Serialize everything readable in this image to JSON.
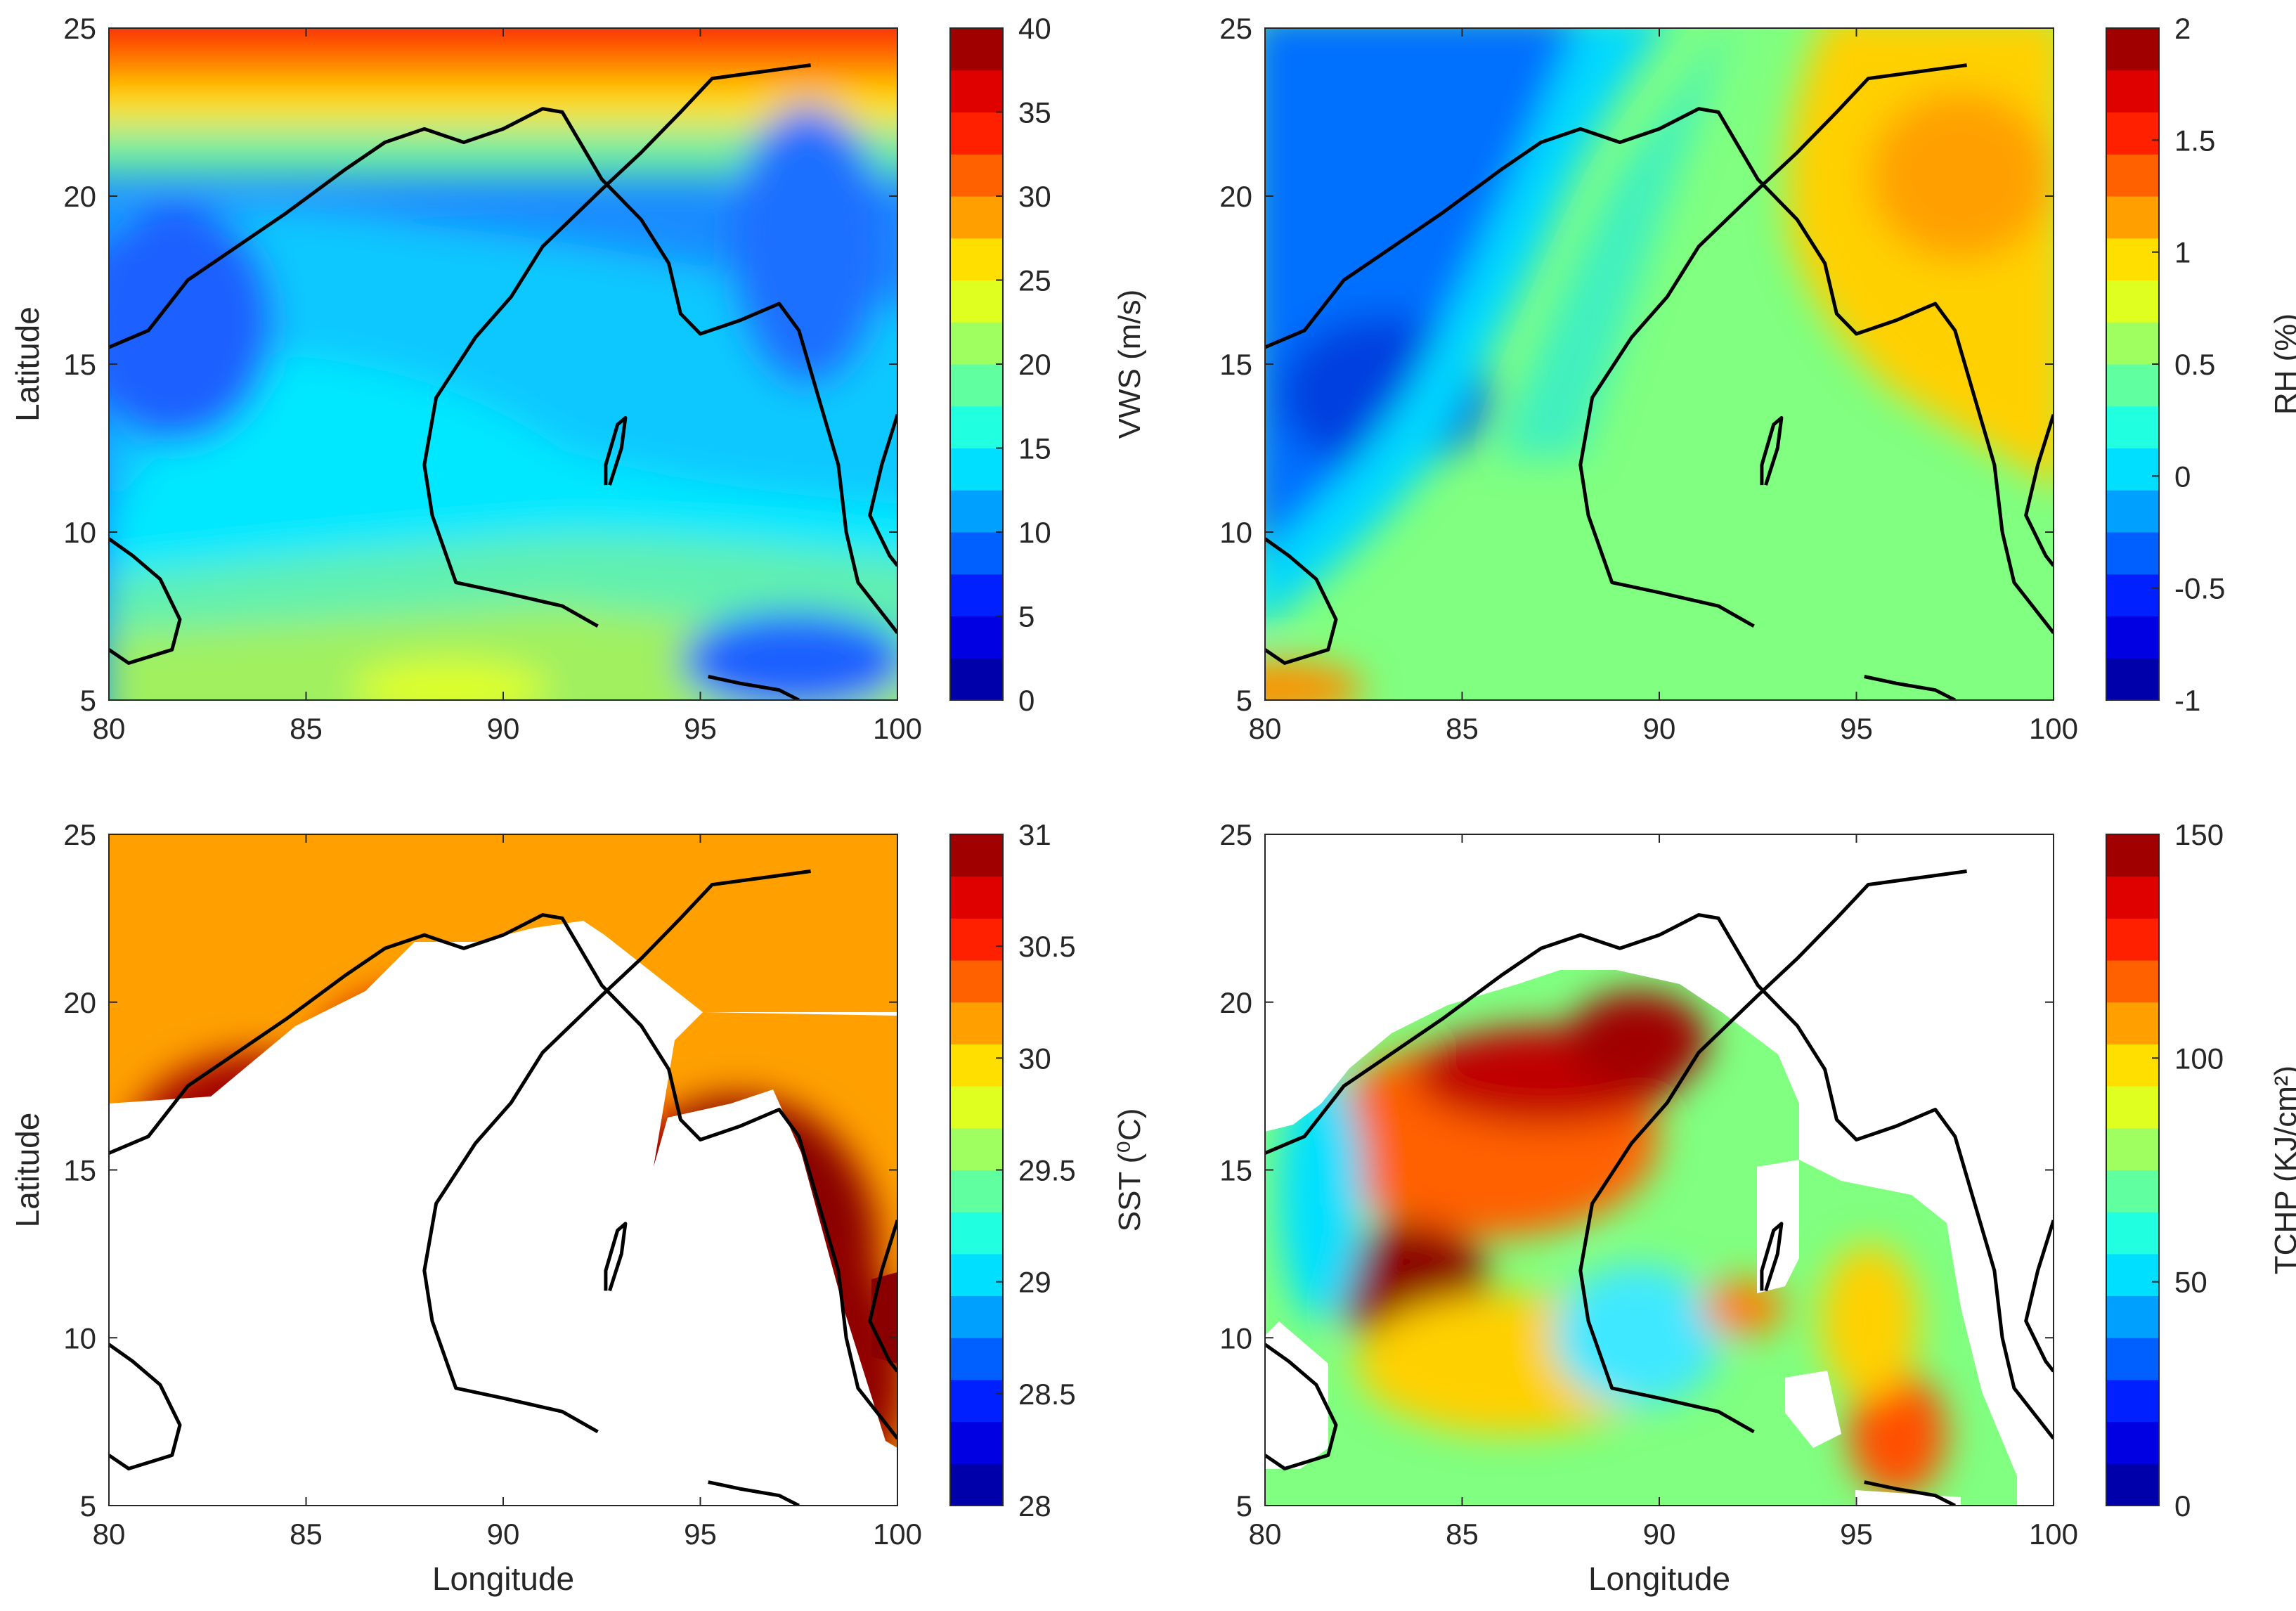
{
  "chart_data": [
    {
      "type": "heatmap",
      "title": "",
      "xlabel": "",
      "ylabel": "Latitude",
      "xlim": [
        80,
        100
      ],
      "ylim": [
        5,
        25
      ],
      "xticks": [
        "80",
        "85",
        "90",
        "95",
        "100"
      ],
      "yticks": [
        "5",
        "10",
        "15",
        "20",
        "25"
      ],
      "colorbar": {
        "label": "VWS (m/s)",
        "min": 0,
        "max": 40,
        "ticks": [
          "0",
          "5",
          "10",
          "15",
          "20",
          "25",
          "30",
          "35",
          "40"
        ]
      },
      "masked_land": false
    },
    {
      "type": "heatmap",
      "title": "",
      "xlabel": "",
      "ylabel": "",
      "xlim": [
        80,
        100
      ],
      "ylim": [
        5,
        25
      ],
      "xticks": [
        "80",
        "85",
        "90",
        "95",
        "100"
      ],
      "yticks": [
        "5",
        "10",
        "15",
        "20",
        "25"
      ],
      "colorbar": {
        "label": "RH (%)",
        "min": -1,
        "max": 2,
        "ticks": [
          "-1",
          "-0.5",
          "0",
          "0.5",
          "1",
          "1.5",
          "2"
        ]
      },
      "masked_land": false
    },
    {
      "type": "heatmap",
      "title": "",
      "xlabel": "Longitude",
      "ylabel": "Latitude",
      "xlim": [
        80,
        100
      ],
      "ylim": [
        5,
        25
      ],
      "xticks": [
        "80",
        "85",
        "90",
        "95",
        "100"
      ],
      "yticks": [
        "5",
        "10",
        "15",
        "20",
        "25"
      ],
      "colorbar": {
        "label": "SST (⁰C)",
        "min": 28,
        "max": 31,
        "ticks": [
          "28",
          "28.5",
          "29",
          "29.5",
          "30",
          "30.5",
          "31"
        ]
      },
      "masked_land": true
    },
    {
      "type": "heatmap",
      "title": "",
      "xlabel": "Longitude",
      "ylabel": "",
      "xlim": [
        80,
        100
      ],
      "ylim": [
        5,
        25
      ],
      "xticks": [
        "80",
        "85",
        "90",
        "95",
        "100"
      ],
      "yticks": [
        "5",
        "10",
        "15",
        "20",
        "25"
      ],
      "colorbar": {
        "label": "TCHP (KJ/cm²)",
        "min": 0,
        "max": 150,
        "ticks": [
          "0",
          "50",
          "100",
          "150"
        ]
      },
      "masked_land": true
    }
  ],
  "overlays": {
    "coastline": [
      [
        80,
        15.5
      ],
      [
        81,
        16
      ],
      [
        82,
        17.5
      ],
      [
        83,
        18.3
      ],
      [
        84.5,
        19.5
      ],
      [
        86,
        20.8
      ],
      [
        87,
        21.6
      ],
      [
        88,
        22
      ],
      [
        89,
        21.6
      ],
      [
        90,
        22
      ],
      [
        91,
        22.6
      ],
      [
        91.5,
        22.5
      ],
      [
        92,
        21.5
      ],
      [
        92.5,
        20.5
      ],
      [
        93.5,
        19.3
      ],
      [
        94.2,
        18
      ],
      [
        94.5,
        16.5
      ],
      [
        95,
        15.9
      ],
      [
        96,
        16.3
      ],
      [
        97,
        16.8
      ],
      [
        97.5,
        16
      ],
      [
        98,
        14
      ],
      [
        98.5,
        12
      ],
      [
        98.7,
        10
      ],
      [
        99,
        8.5
      ],
      [
        100,
        7
      ]
    ],
    "coastline_south": [
      [
        95.2,
        5.7
      ],
      [
        96,
        5.5
      ],
      [
        97,
        5.3
      ],
      [
        97.5,
        5
      ]
    ],
    "sri_lanka": [
      [
        80,
        9.8
      ],
      [
        80.6,
        9.3
      ],
      [
        81.3,
        8.6
      ],
      [
        81.8,
        7.4
      ],
      [
        81.6,
        6.5
      ],
      [
        80.5,
        6.1
      ],
      [
        80,
        6.5
      ]
    ],
    "malay_coast": [
      [
        100,
        13.5
      ],
      [
        99.6,
        12
      ],
      [
        99.3,
        10.5
      ],
      [
        99.8,
        9.3
      ],
      [
        100,
        9
      ]
    ],
    "andaman": [
      [
        92.7,
        11.4
      ],
      [
        93.0,
        12.5
      ],
      [
        93.1,
        13.4
      ],
      [
        92.9,
        13.2
      ],
      [
        92.6,
        12
      ],
      [
        92.6,
        11.4
      ]
    ],
    "track": [
      [
        92.4,
        7.2
      ],
      [
        91.5,
        7.8
      ],
      [
        90,
        8.2
      ],
      [
        88.8,
        8.5
      ],
      [
        88.2,
        10.5
      ],
      [
        88,
        12
      ],
      [
        88.3,
        14
      ],
      [
        89.3,
        15.8
      ],
      [
        90.2,
        17
      ],
      [
        91,
        18.5
      ],
      [
        92.5,
        20.2
      ],
      [
        93.5,
        21.3
      ],
      [
        94.5,
        22.5
      ],
      [
        95.3,
        23.5
      ],
      [
        97.8,
        23.9
      ]
    ]
  },
  "colors": {
    "jet": [
      "#00008f",
      "#0000ff",
      "#0080ff",
      "#00ffff",
      "#80ff80",
      "#ffff00",
      "#ff8000",
      "#ff0000",
      "#800000"
    ],
    "outline": "#000000",
    "axis": "#262626",
    "mask": "#ffffff"
  }
}
